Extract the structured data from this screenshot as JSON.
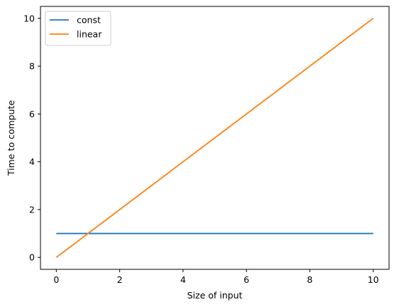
{
  "chart_data": {
    "type": "line",
    "title": "",
    "xlabel": "Size of input",
    "ylabel": "Time to compute",
    "xlim": [
      -0.5,
      10.5
    ],
    "ylim": [
      -0.5,
      10.5
    ],
    "xticks": [
      0,
      2,
      4,
      6,
      8,
      10
    ],
    "yticks": [
      0,
      2,
      4,
      6,
      8,
      10
    ],
    "grid": false,
    "legend_position": "top-left",
    "series": [
      {
        "name": "const",
        "color": "#1f77b4",
        "x": [
          0,
          10
        ],
        "y": [
          1,
          1
        ]
      },
      {
        "name": "linear",
        "color": "#ff7f0e",
        "x": [
          0,
          10
        ],
        "y": [
          0,
          10
        ]
      }
    ]
  }
}
